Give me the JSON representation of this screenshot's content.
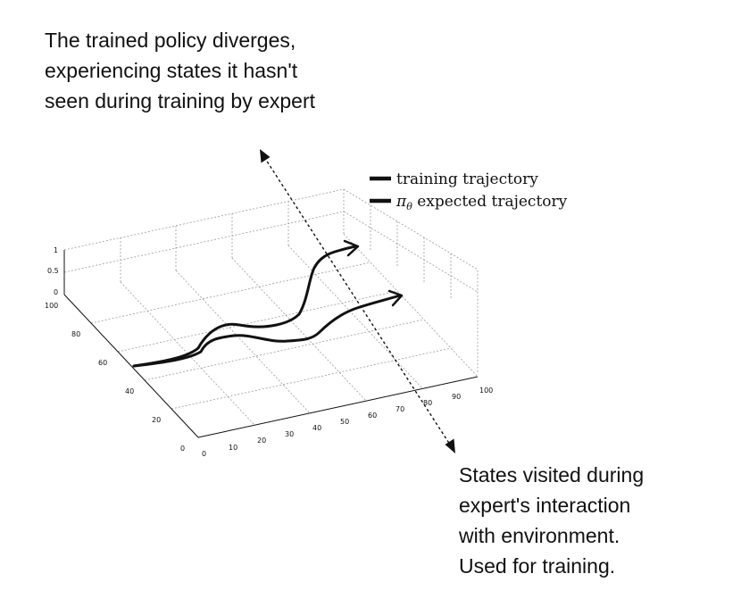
{
  "annotations": {
    "top": [
      "The trained policy diverges,",
      "experiencing states it hasn't",
      "seen during training by expert"
    ],
    "bottom": [
      "States visited during",
      "expert's interaction",
      "with environment.",
      "Used for training."
    ]
  },
  "legend": {
    "item1": {
      "label": "training trajectory"
    },
    "item2": {
      "symbol": "π",
      "subscript": "θ",
      "label": " expected trajectory"
    }
  },
  "axes": {
    "x_ticks": [
      "0",
      "10",
      "20",
      "30",
      "40",
      "50",
      "60",
      "70",
      "80",
      "90",
      "100"
    ],
    "y_ticks": [
      "0",
      "20",
      "40",
      "60",
      "80",
      "100"
    ],
    "z_ticks": [
      "0",
      "0.5",
      "1"
    ]
  },
  "colors": {
    "ink": "#111111",
    "grid": "#9a9a9a",
    "background": "#ffffff"
  }
}
